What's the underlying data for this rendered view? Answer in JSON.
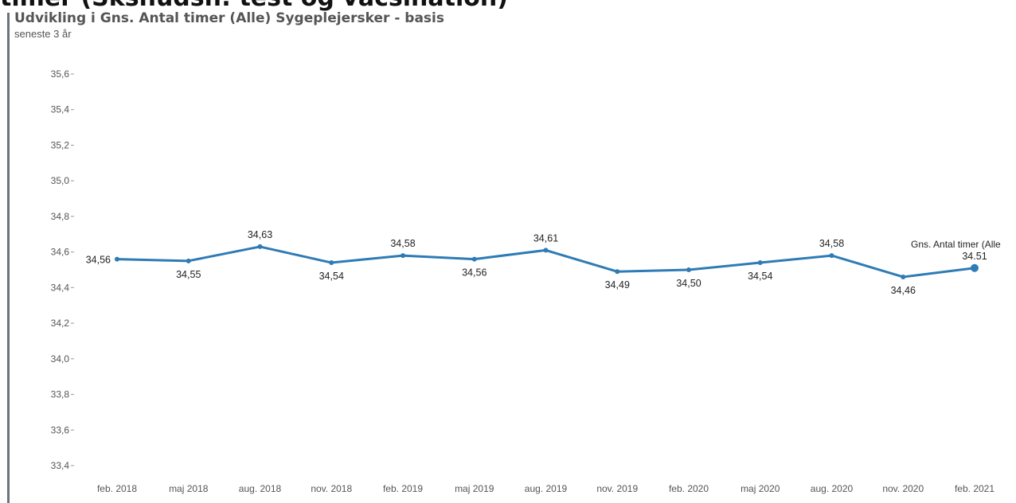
{
  "page": {
    "clipped_heading": "timer (Sksnudsn: test og vacsination)"
  },
  "chart_data": {
    "type": "line",
    "title": "Udvikling i Gns. Antal timer (Alle) Sygeplejersker - basis",
    "subtitle": "seneste 3 år",
    "xlabel": "",
    "ylabel": "",
    "categories": [
      "feb. 2018",
      "maj 2018",
      "aug. 2018",
      "nov. 2018",
      "feb. 2019",
      "maj 2019",
      "aug. 2019",
      "nov. 2019",
      "feb. 2020",
      "maj 2020",
      "aug. 2020",
      "nov. 2020",
      "feb. 2021"
    ],
    "series": [
      {
        "name": "Gns. Antal timer (Alle",
        "values": [
          34.56,
          34.55,
          34.63,
          34.54,
          34.58,
          34.56,
          34.61,
          34.49,
          34.5,
          34.54,
          34.58,
          34.46,
          34.51
        ],
        "data_labels": [
          "34,56",
          "34,55",
          "34,63",
          "34,54",
          "34,58",
          "34,56",
          "34,61",
          "34,49",
          "34,50",
          "34,54",
          "34,58",
          "34,46",
          "34.51"
        ],
        "color": "#2e7bb5"
      }
    ],
    "ylim": [
      33.4,
      35.6
    ],
    "yticks": [
      33.4,
      33.6,
      33.8,
      34.0,
      34.2,
      34.4,
      34.6,
      34.8,
      35.0,
      35.2,
      35.4,
      35.6
    ],
    "ytick_labels": [
      "33,4",
      "33,6",
      "33,8",
      "34,0",
      "34,2",
      "34,4",
      "34,6",
      "34,8",
      "35,0",
      "35,2",
      "35,4",
      "35,6"
    ],
    "grid": false,
    "legend": "end-of-line label"
  }
}
